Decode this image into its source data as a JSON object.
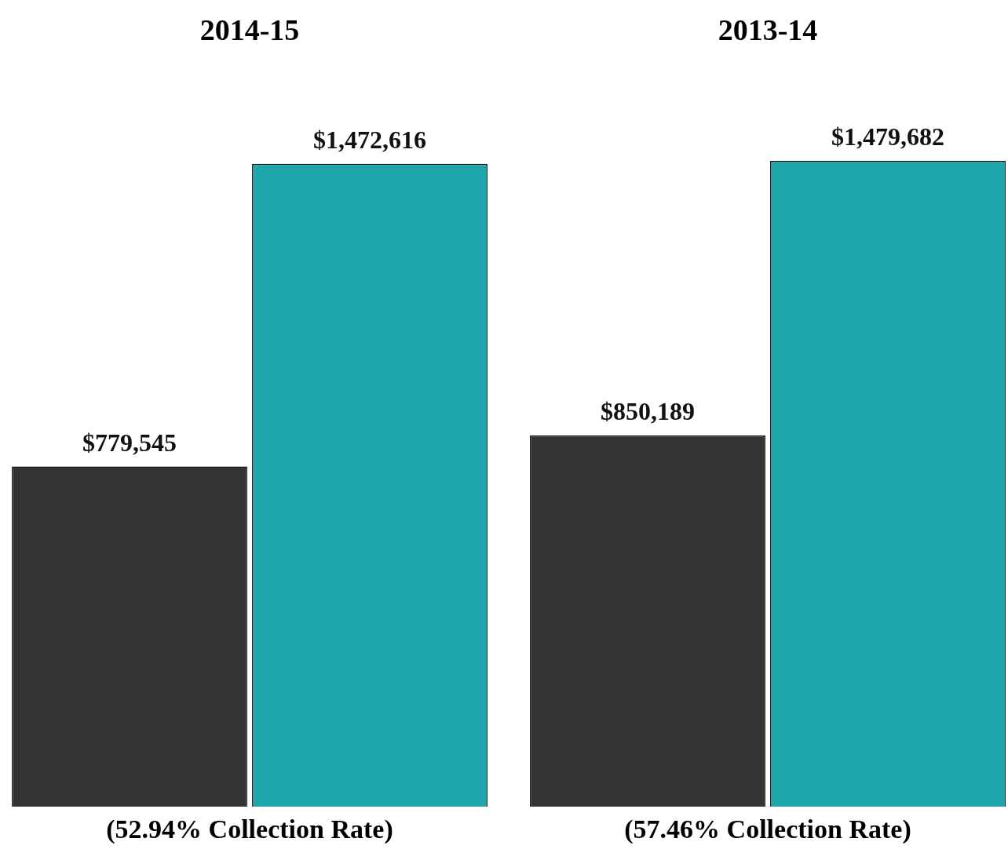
{
  "chart_data": [
    {
      "type": "bar",
      "title": "2014-15",
      "categories": [
        null,
        null
      ],
      "values": [
        779545,
        1472616
      ],
      "colors": [
        "#333333",
        "#1fa6ad"
      ],
      "data_labels": true,
      "value_labels": [
        "$779,545",
        "$1,472,616"
      ],
      "annotations": [
        "(52.94% Collection Rate)"
      ]
    },
    {
      "type": "bar",
      "title": "2013-14",
      "categories": [
        null,
        null
      ],
      "values": [
        850189,
        1479682
      ],
      "colors": [
        "#333333",
        "#1fa6ad"
      ],
      "data_labels": true,
      "value_labels": [
        "$850,189",
        "$1,479,682"
      ],
      "annotations": [
        "(57.46% Collection Rate)"
      ]
    }
  ]
}
